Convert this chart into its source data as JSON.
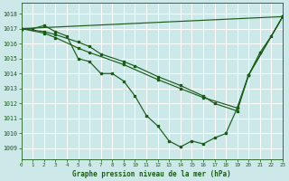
{
  "bg_color": "#cde8e8",
  "grid_color": "#b0d0d0",
  "line_color": "#1a5c1a",
  "title": "Graphe pression niveau de la mer (hPa)",
  "ylim": [
    1008.3,
    1018.7
  ],
  "xlim": [
    0,
    23
  ],
  "yticks": [
    1009,
    1010,
    1011,
    1012,
    1013,
    1014,
    1015,
    1016,
    1017,
    1018
  ],
  "xticks": [
    0,
    1,
    2,
    3,
    4,
    5,
    6,
    7,
    8,
    9,
    10,
    11,
    12,
    13,
    14,
    15,
    16,
    17,
    18,
    19,
    20,
    21,
    22,
    23
  ],
  "series1_x": [
    0,
    1,
    2,
    3,
    4,
    5,
    6,
    7,
    8,
    9,
    10,
    11,
    12,
    13,
    14,
    15,
    16,
    17,
    18,
    19,
    20,
    21,
    22,
    23
  ],
  "series1_y": [
    1017.0,
    1017.0,
    1017.2,
    1016.8,
    1016.5,
    1015.0,
    1014.8,
    1014.0,
    1014.0,
    1013.5,
    1012.5,
    1011.2,
    1010.5,
    1009.5,
    1009.1,
    1009.5,
    1009.3,
    1009.7,
    1010.0,
    1011.7,
    1013.9,
    1015.4,
    1016.5,
    1017.8
  ],
  "series2_x": [
    0,
    2,
    3,
    5,
    6,
    7,
    9,
    10,
    12,
    14,
    16,
    17,
    19,
    20,
    23
  ],
  "series2_y": [
    1017.0,
    1016.8,
    1016.6,
    1016.1,
    1015.8,
    1015.3,
    1014.8,
    1014.5,
    1013.8,
    1013.2,
    1012.5,
    1012.0,
    1011.5,
    1013.9,
    1017.8
  ],
  "series3_x": [
    0,
    2,
    3,
    5,
    6,
    9,
    12,
    14,
    16,
    19,
    20,
    23
  ],
  "series3_y": [
    1017.0,
    1016.7,
    1016.4,
    1015.7,
    1015.4,
    1014.6,
    1013.6,
    1013.0,
    1012.4,
    1011.7,
    1013.9,
    1017.8
  ],
  "series4_x": [
    0,
    23
  ],
  "series4_y": [
    1017.0,
    1017.8
  ]
}
